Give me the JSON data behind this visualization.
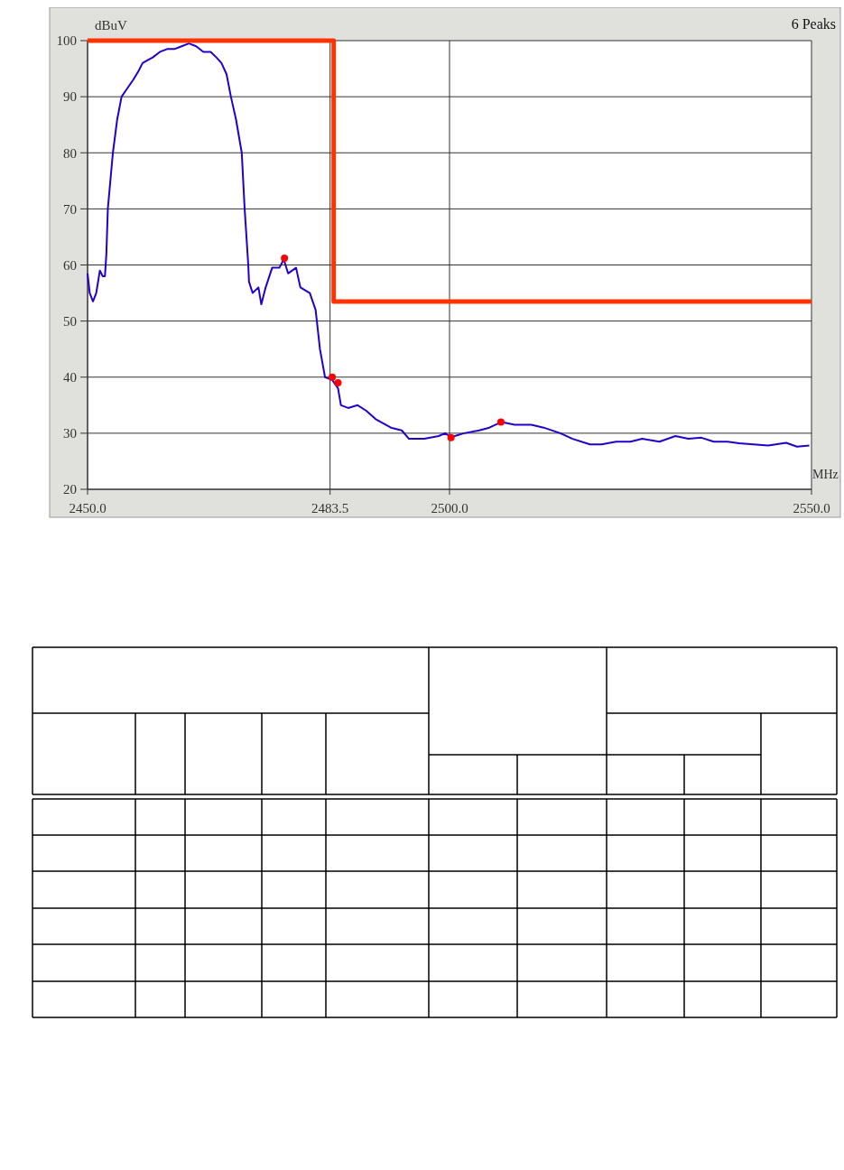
{
  "chart_data": {
    "type": "line",
    "xlabel": "MHz",
    "ylabel": "dBuV",
    "annotations": [
      "6 Peaks"
    ],
    "xlim": [
      2450,
      2550
    ],
    "ylim": [
      20,
      100
    ],
    "xticks": [
      {
        "value": 2450,
        "label": "2450.0"
      },
      {
        "value": 2483.5,
        "label": "2483.5"
      },
      {
        "value": 2500,
        "label": "2500.0"
      },
      {
        "value": 2550,
        "label": "2550.0"
      }
    ],
    "yticks": [
      20,
      30,
      40,
      50,
      60,
      70,
      80,
      90,
      100
    ],
    "grid": true,
    "series": [
      {
        "type": "line",
        "color": "#2200cc",
        "x": [
          2450,
          2450.3,
          2450.75,
          2451.2,
          2451.7,
          2452.1,
          2452.4,
          2452.6,
          2452.8,
          2453.5,
          2454.1,
          2454.7,
          2455.5,
          2456.3,
          2457,
          2457.6,
          2458.3,
          2459,
          2460,
          2461,
          2462,
          2463,
          2464,
          2465,
          2466,
          2467,
          2467.8,
          2468.5,
          2469.2,
          2469.8,
          2470.5,
          2471.3,
          2471.7,
          2472.2,
          2472.3,
          2472.8,
          2473.6,
          2474,
          2474.6,
          2475.5,
          2476.5,
          2477.1,
          2477.7,
          2478.8,
          2479.4,
          2480.7,
          2481.5,
          2482.1,
          2482.8,
          2483.8,
          2484.6,
          2485,
          2486,
          2487.3,
          2488.5,
          2489.8,
          2491.9,
          2493.4,
          2494.4,
          2496.5,
          2498.5,
          2499.4,
          2500.2,
          2502,
          2504.1,
          2505.5,
          2507.2,
          2509,
          2511.3,
          2513,
          2515.3,
          2517,
          2519.4,
          2521,
          2523,
          2525,
          2526.6,
          2529,
          2531.2,
          2533,
          2534.8,
          2536.5,
          2538.4,
          2540,
          2542,
          2544,
          2546.5,
          2548,
          2549.7
        ],
        "values": [
          58.5,
          55,
          53.5,
          55,
          59,
          58,
          58,
          62,
          70,
          80,
          86,
          90,
          91.5,
          93,
          94.5,
          96,
          96.5,
          97,
          98,
          98.5,
          98.5,
          99,
          99.5,
          99,
          98,
          98,
          97,
          96,
          94,
          90,
          86,
          80,
          70,
          60,
          57,
          55,
          56,
          53,
          56,
          59.5,
          59.5,
          61,
          58.5,
          59.5,
          56,
          55,
          52,
          45,
          40,
          39.5,
          38,
          35,
          34.5,
          35,
          34,
          32.5,
          31,
          30.5,
          29,
          29,
          29.5,
          30,
          29.3,
          30,
          30.5,
          31,
          32,
          31.5,
          31.5,
          31,
          30,
          29,
          28,
          28,
          28.5,
          28.5,
          29,
          28.5,
          29.5,
          29,
          29.2,
          28.5,
          28.5,
          28.2,
          28,
          27.8,
          28.3,
          27.6,
          27.8
        ]
      },
      {
        "type": "line",
        "color": "#ff3300",
        "x": [
          2450,
          2484,
          2484,
          2550
        ],
        "values": [
          100,
          100,
          53.5,
          53.5
        ]
      },
      {
        "type": "scatter",
        "color": "#ff0000",
        "marker": "circle",
        "x": [
          2477.2,
          2483.8,
          2484.6,
          2500.2,
          2507.1
        ],
        "values": [
          61.2,
          40,
          39,
          29.2,
          32
        ]
      }
    ]
  }
}
